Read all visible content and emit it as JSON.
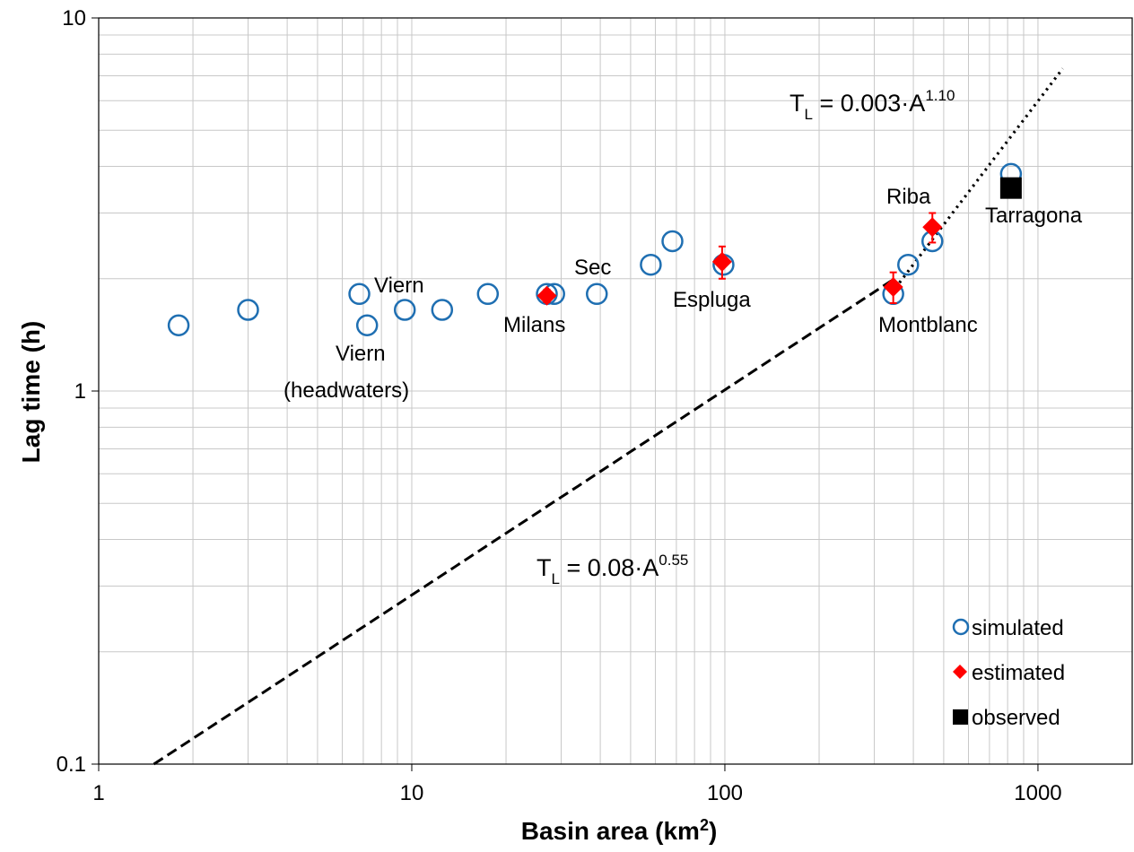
{
  "chart_data": {
    "type": "scatter",
    "title": "",
    "xlabel": "Basin area (km",
    "xlabel_sup": "2",
    "xlabel_end": ")",
    "ylabel": "Lag time (h)",
    "xscale": "log",
    "yscale": "log",
    "xlim": [
      1,
      2000
    ],
    "ylim": [
      0.1,
      10
    ],
    "x_ticks": [
      1,
      10,
      100,
      1000
    ],
    "x_tick_labels": [
      "1",
      "10",
      "100",
      "1000"
    ],
    "y_ticks": [
      0.1,
      1,
      10
    ],
    "y_tick_labels": [
      "0.1",
      "1",
      "10"
    ],
    "grid": true,
    "legend_position": "bottom-right",
    "series": [
      {
        "name": "simulated",
        "marker": "open-circle",
        "color": "#1f6fb2",
        "points": [
          {
            "x": 1.8,
            "y": 1.5
          },
          {
            "x": 3.0,
            "y": 1.65
          },
          {
            "x": 6.8,
            "y": 1.82
          },
          {
            "x": 7.2,
            "y": 1.5
          },
          {
            "x": 9.5,
            "y": 1.65
          },
          {
            "x": 12.5,
            "y": 1.65
          },
          {
            "x": 17.5,
            "y": 1.82
          },
          {
            "x": 27,
            "y": 1.82
          },
          {
            "x": 28.5,
            "y": 1.82
          },
          {
            "x": 39,
            "y": 1.82
          },
          {
            "x": 58,
            "y": 2.18
          },
          {
            "x": 68,
            "y": 2.52
          },
          {
            "x": 99,
            "y": 2.18
          },
          {
            "x": 345,
            "y": 1.82
          },
          {
            "x": 385,
            "y": 2.18
          },
          {
            "x": 460,
            "y": 2.52
          },
          {
            "x": 820,
            "y": 3.82
          }
        ]
      },
      {
        "name": "estimated",
        "marker": "diamond",
        "color": "#ff0000",
        "points": [
          {
            "x": 27,
            "y": 1.8,
            "err": 0.07
          },
          {
            "x": 98,
            "y": 2.22,
            "err": 0.22
          },
          {
            "x": 345,
            "y": 1.9,
            "err": 0.18
          },
          {
            "x": 460,
            "y": 2.75,
            "err": 0.25
          }
        ]
      },
      {
        "name": "observed",
        "marker": "square",
        "color": "#000000",
        "points": [
          {
            "x": 820,
            "y": 3.5
          }
        ]
      }
    ],
    "lines": [
      {
        "name": "",
        "style": "dashed",
        "coef": 0.08,
        "exp": 0.55,
        "x_range": [
          1.5,
          340
        ]
      },
      {
        "name": "",
        "style": "dotted",
        "coef": 0.003,
        "exp": 1.1,
        "x_range": [
          340,
          1200
        ]
      }
    ],
    "equations": [
      {
        "base": "T",
        "sub": "L",
        "mid": " = 0.003·A",
        "sup": "1.10"
      },
      {
        "base": "T",
        "sub": "L",
        "mid": " = 0.08·A",
        "sup": "0.55"
      }
    ],
    "annotations": [
      "Viern",
      "Viern",
      "(headwaters)",
      "Milans",
      "Sec",
      "Espluga",
      "Riba",
      "Tarragona",
      "Montblanc"
    ]
  }
}
